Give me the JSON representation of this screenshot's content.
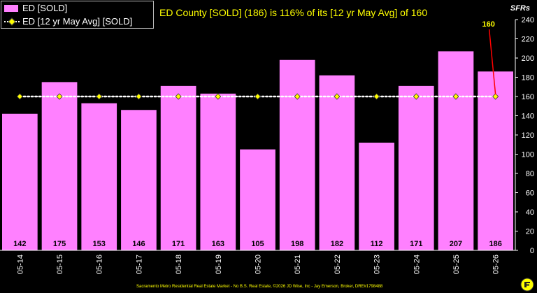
{
  "legend": {
    "bar_label": "ED [SOLD]",
    "line_label": "ED [12 yr May Avg] [SOLD]"
  },
  "footer": "Sacramento Metro Residential Real Estate Market - No B.S. Real Estate, ©2026 JD Wise, Inc - Jay Emerson, Broker, DRE#1798488",
  "colors": {
    "bar": "#ff80ff",
    "avg_line": "#ffffff",
    "avg_marker": "#ffff00",
    "callout_line": "#ff0000",
    "text_yellow": "#ffff00"
  },
  "chart_data": {
    "type": "bar",
    "title": "ED County [SOLD] (186) is 116% of its [12 yr May Avg] of 160",
    "ylabel": "SFRs",
    "categories": [
      "05-14",
      "05-15",
      "05-16",
      "05-17",
      "05-18",
      "05-19",
      "05-20",
      "05-21",
      "05-22",
      "05-23",
      "05-24",
      "05-25",
      "05-26"
    ],
    "series": [
      {
        "name": "ED [SOLD]",
        "type": "bar",
        "values": [
          142,
          175,
          153,
          146,
          171,
          163,
          105,
          198,
          182,
          112,
          171,
          207,
          186
        ]
      },
      {
        "name": "ED [12 yr May Avg] [SOLD]",
        "type": "line",
        "values": [
          160,
          160,
          160,
          160,
          160,
          160,
          160,
          160,
          160,
          160,
          160,
          160,
          160
        ]
      }
    ],
    "annotation": {
      "text": "160",
      "category": "05-26",
      "value": 160
    },
    "ylim": [
      0,
      240
    ],
    "yticks": [
      0,
      20,
      40,
      60,
      80,
      100,
      120,
      140,
      160,
      180,
      200,
      220,
      240
    ],
    "grid": false,
    "legend_position": "top-left"
  }
}
